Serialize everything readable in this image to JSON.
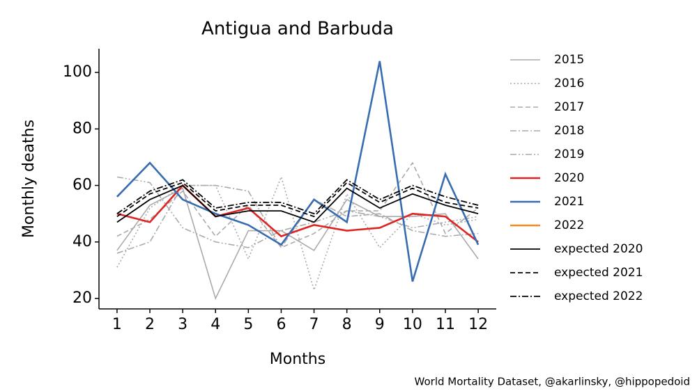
{
  "chart_data": {
    "type": "line",
    "title": "Antigua and Barbuda",
    "xlabel": "Months",
    "ylabel": "Monthly deaths",
    "source": "World Mortality Dataset, @akarlinsky, @hippopedoid",
    "x": [
      1,
      2,
      3,
      4,
      5,
      6,
      7,
      8,
      9,
      10,
      11,
      12
    ],
    "xlim": [
      0.45,
      12.55
    ],
    "xticks": [
      1,
      2,
      3,
      4,
      5,
      6,
      7,
      8,
      9,
      10,
      11,
      12
    ],
    "ylim": [
      16.3,
      108.4
    ],
    "yticks": [
      20,
      40,
      60,
      80,
      100
    ],
    "legend": "outside-right",
    "series": [
      {
        "name": "2015",
        "color": "#aaaaaa",
        "linestyle": "solid",
        "values": [
          37,
          53,
          59,
          20,
          44,
          44,
          37,
          55,
          49,
          49,
          50,
          34
        ]
      },
      {
        "name": "2016",
        "color": "#aaaaaa",
        "linestyle": "dotted",
        "values": [
          31,
          52,
          60,
          60,
          34,
          63,
          23,
          57,
          38,
          50,
          46,
          48
        ]
      },
      {
        "name": "2017",
        "color": "#aaaaaa",
        "linestyle": "dashed",
        "values": [
          42,
          48,
          58,
          42,
          53,
          38,
          43,
          51,
          51,
          68,
          43,
          52
        ]
      },
      {
        "name": "2018",
        "color": "#aaaaaa",
        "linestyle": "dashdot",
        "values": [
          36,
          40,
          60,
          60,
          58,
          38,
          55,
          49,
          50,
          44,
          42,
          43
        ]
      },
      {
        "name": "2019",
        "color": "#aaaaaa",
        "linestyle": "dashdotdot",
        "values": [
          63,
          61,
          45,
          40,
          38,
          44,
          47,
          51,
          49,
          45,
          47,
          49
        ]
      },
      {
        "name": "2020",
        "color": "#de2423",
        "linestyle": "solid",
        "values": [
          50,
          47,
          60,
          49,
          52,
          42,
          46,
          44,
          45,
          50,
          49,
          40
        ]
      },
      {
        "name": "2021",
        "color": "#386cb0",
        "linestyle": "solid",
        "values": [
          56,
          68,
          55,
          50,
          46,
          39,
          55,
          47,
          104,
          26,
          64,
          39
        ]
      },
      {
        "name": "2022",
        "color": "#f68b1f",
        "linestyle": "solid",
        "values": [
          null,
          null,
          null,
          null,
          null,
          null,
          null,
          null,
          null,
          null,
          null,
          null
        ]
      },
      {
        "name": "expected 2020",
        "color": "#000000",
        "linestyle": "solid",
        "values": [
          47,
          55,
          60,
          49,
          51,
          51,
          47,
          59,
          52,
          57,
          53,
          50
        ]
      },
      {
        "name": "expected 2021",
        "color": "#000000",
        "linestyle": "dashed",
        "values": [
          49,
          57,
          61,
          51,
          53,
          53,
          49,
          61,
          54,
          59,
          54,
          52
        ]
      },
      {
        "name": "expected 2022",
        "color": "#000000",
        "linestyle": "dashdot",
        "values": [
          50,
          58,
          62,
          52,
          54,
          54,
          50,
          62,
          55,
          60,
          56,
          53
        ]
      }
    ]
  }
}
